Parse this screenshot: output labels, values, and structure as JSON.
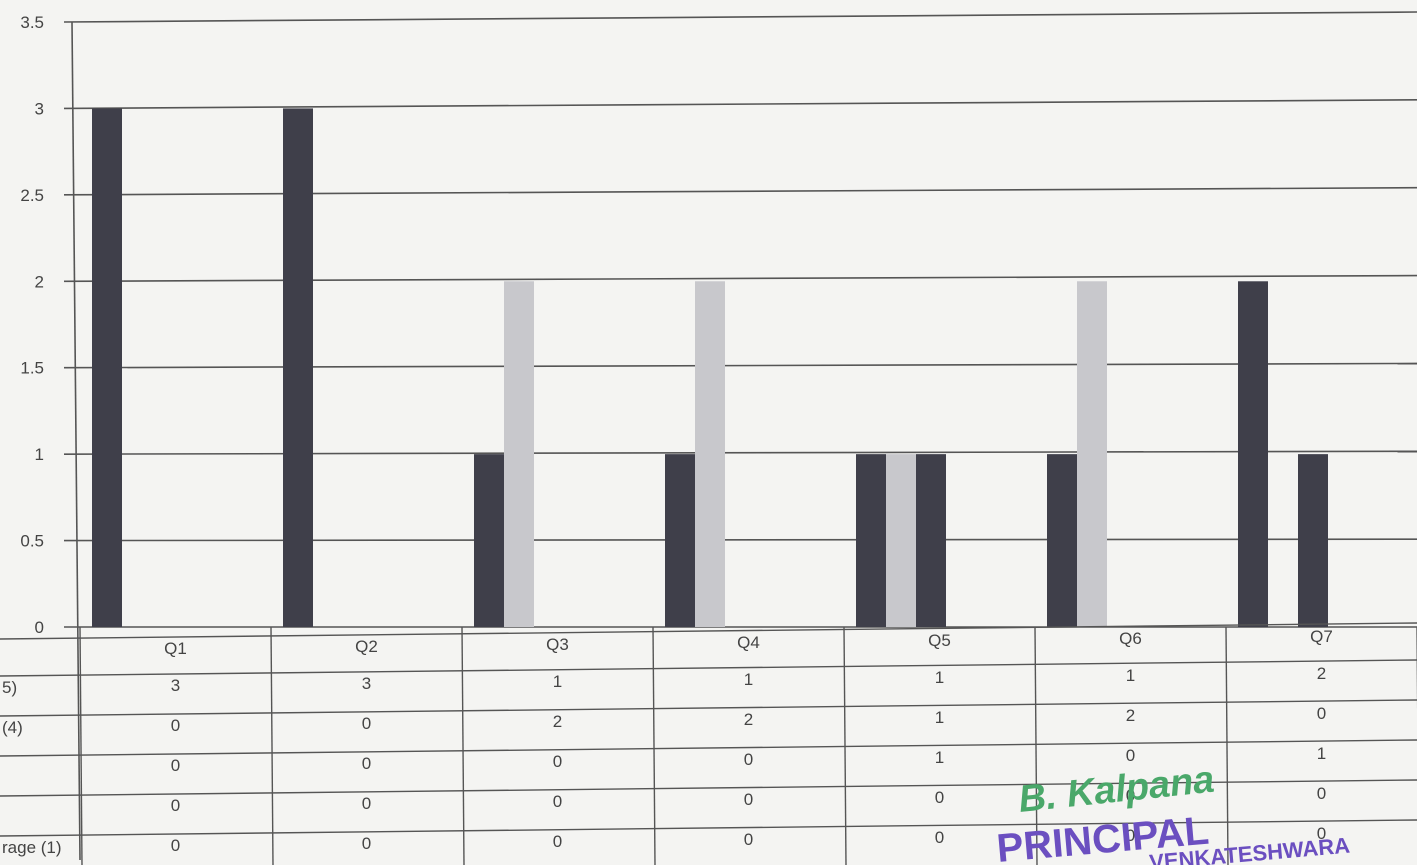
{
  "chart_data": {
    "type": "bar",
    "categories": [
      "Q1",
      "Q2",
      "Q3",
      "Q4",
      "Q5",
      "Q6",
      "Q7"
    ],
    "series": [
      {
        "name": "5)",
        "values": [
          3,
          3,
          1,
          1,
          1,
          1,
          2
        ]
      },
      {
        "name": "(4)",
        "values": [
          0,
          0,
          2,
          2,
          1,
          2,
          0
        ]
      },
      {
        "name": "",
        "values": [
          0,
          0,
          0,
          0,
          1,
          0,
          1
        ]
      },
      {
        "name": "",
        "values": [
          0,
          0,
          0,
          0,
          0,
          0,
          0
        ]
      },
      {
        "name": "rage (1)",
        "values": [
          0,
          0,
          0,
          0,
          0,
          0,
          0
        ]
      }
    ],
    "ylim": [
      0,
      3.5
    ],
    "yticks": [
      "0",
      "0.5",
      "1",
      "1.5",
      "2",
      "2.5",
      "3",
      "3.5"
    ],
    "grid": true,
    "legend": "data-table below plot",
    "colors": [
      "#3f3f4a",
      "#c8c8cc",
      "#3f3f4a",
      "#7a7a80",
      "#9a9aa0"
    ]
  },
  "stamp": {
    "signature": "B. Kalpana",
    "title": "PRINCIPAL",
    "line2": "VENKATESHWARA"
  }
}
